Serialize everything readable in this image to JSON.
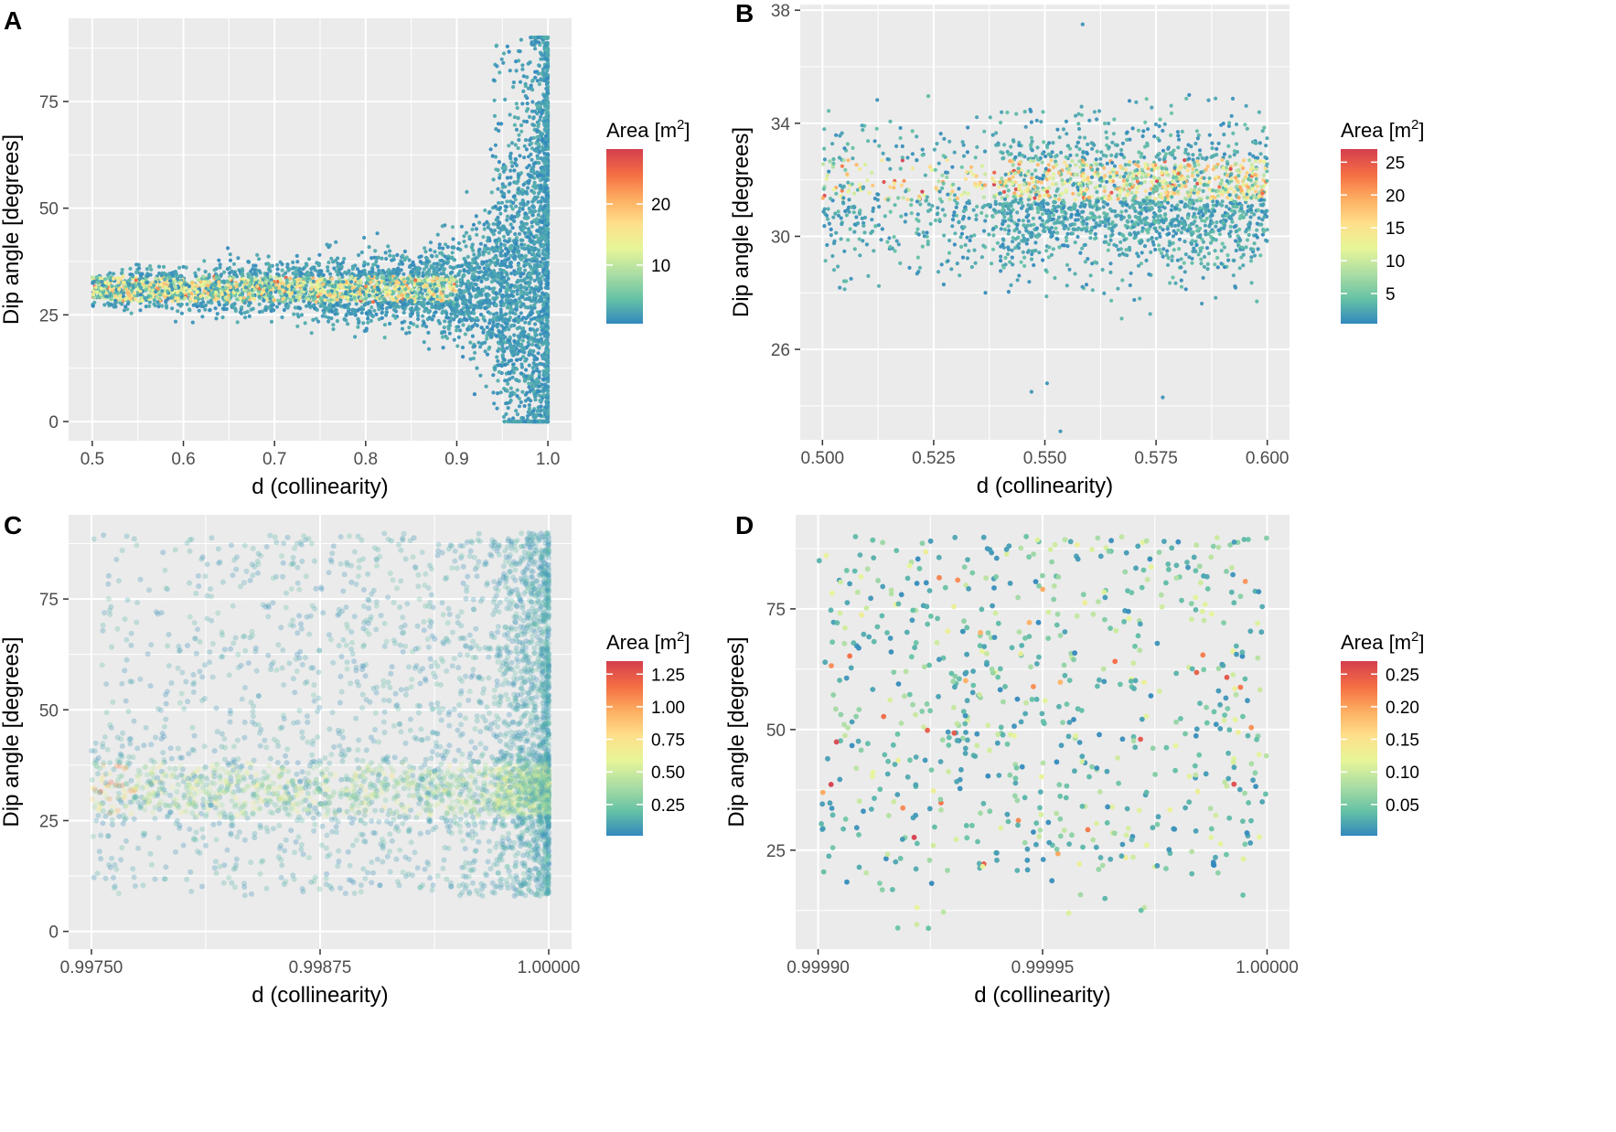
{
  "chart_data": [
    {
      "type": "scatter",
      "panel": "A",
      "xlabel": "d (collinearity)",
      "ylabel": "Dip angle [degrees]",
      "xlim": [
        0.474,
        1.026
      ],
      "ylim": [
        -4.5,
        94.5
      ],
      "x_ticks": [
        0.5,
        0.6,
        0.7,
        0.8,
        0.9,
        1.0
      ],
      "x_tick_labels": [
        "0.5",
        "0.6",
        "0.7",
        "0.8",
        "0.9",
        "1.0"
      ],
      "y_ticks": [
        0,
        25,
        50,
        75
      ],
      "y_tick_labels": [
        "0",
        "25",
        "50",
        "75"
      ],
      "legend": {
        "title": "Area [m",
        "title_sup": "2",
        "title_end": "]",
        "ticks": [
          10,
          20
        ],
        "tick_labels": [
          "10",
          "20"
        ],
        "range": [
          0.4,
          29
        ],
        "placement": "right"
      },
      "pattern": "funnel",
      "point_alpha": 0.95,
      "seed": 11
    },
    {
      "type": "scatter",
      "panel": "B",
      "xlabel": "d (collinearity)",
      "ylabel": "Dip angle [degrees]",
      "xlim": [
        0.495,
        0.605
      ],
      "ylim": [
        22.8,
        38.2
      ],
      "x_ticks": [
        0.5,
        0.525,
        0.55,
        0.575,
        0.6
      ],
      "x_tick_labels": [
        "0.500",
        "0.525",
        "0.550",
        "0.575",
        "0.600"
      ],
      "y_ticks": [
        26,
        30,
        34,
        38
      ],
      "y_tick_labels": [
        "26",
        "30",
        "34",
        "38"
      ],
      "legend": {
        "title": "Area [m",
        "title_sup": "2",
        "title_end": "]",
        "ticks": [
          5,
          10,
          15,
          20,
          25
        ],
        "tick_labels": [
          "5",
          "10",
          "15",
          "20",
          "25"
        ],
        "range": [
          0.4,
          27
        ],
        "placement": "right"
      },
      "pattern": "band",
      "point_alpha": 0.95,
      "seed": 23
    },
    {
      "type": "scatter",
      "panel": "C",
      "xlabel": "d (collinearity)",
      "ylabel": "Dip angle [degrees]",
      "xlim": [
        0.997375,
        1.000125
      ],
      "ylim": [
        -4,
        94
      ],
      "x_ticks": [
        0.9975,
        0.99875,
        1.0
      ],
      "x_tick_labels": [
        "0.99750",
        "0.99875",
        "1.00000"
      ],
      "y_ticks": [
        0,
        25,
        50,
        75
      ],
      "y_tick_labels": [
        "0",
        "25",
        "50",
        "75"
      ],
      "legend": {
        "title": "Area [m",
        "title_sup": "2",
        "title_end": "]",
        "ticks": [
          0.25,
          0.5,
          0.75,
          1.0,
          1.25
        ],
        "tick_labels": [
          "0.25",
          "0.50",
          "0.75",
          "1.00",
          "1.25"
        ],
        "range": [
          0.01,
          1.35
        ],
        "placement": "right"
      },
      "pattern": "spread",
      "point_alpha": 0.3,
      "seed": 37
    },
    {
      "type": "scatter",
      "panel": "D",
      "xlabel": "d (collinearity)",
      "ylabel": "Dip angle [degrees]",
      "xlim": [
        0.999895,
        1.000005
      ],
      "ylim": [
        4.5,
        94.5
      ],
      "x_ticks": [
        0.9999,
        0.99995,
        1.0
      ],
      "x_tick_labels": [
        "0.99990",
        "0.99995",
        "1.00000"
      ],
      "y_ticks": [
        25,
        50,
        75
      ],
      "y_tick_labels": [
        "25",
        "50",
        "75"
      ],
      "legend": {
        "title": "Area [m",
        "title_sup": "2",
        "title_end": "]",
        "ticks": [
          0.05,
          0.1,
          0.15,
          0.2,
          0.25
        ],
        "tick_labels": [
          "0.05",
          "0.10",
          "0.15",
          "0.20",
          "0.25"
        ],
        "range": [
          0.002,
          0.27
        ],
        "placement": "right"
      },
      "pattern": "uniform",
      "point_alpha": 0.95,
      "seed": 53
    }
  ],
  "colors": {
    "panel_bg": "#ebebeb",
    "grid": "#ffffff",
    "scale": [
      "#3288bd",
      "#66c2a5",
      "#abdda4",
      "#e6f598",
      "#fee08b",
      "#fdae61",
      "#f46d43",
      "#d53e4f"
    ]
  }
}
